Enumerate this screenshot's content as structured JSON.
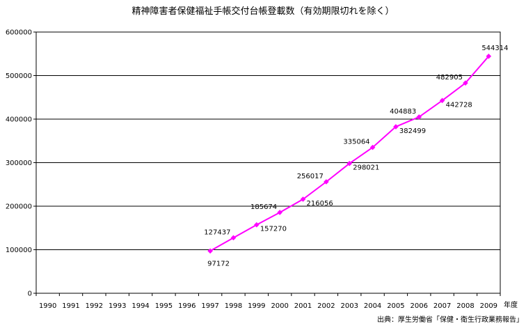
{
  "chart_data": {
    "type": "line",
    "title": "精神障害者保健福祉手帳交付台帳登載数（有効期限切れを除く）",
    "xlabel": "年度",
    "ylabel": "",
    "source": "出典：厚生労働省「保健・衛生行政業務報告」",
    "categories": [
      "1990",
      "1991",
      "1992",
      "1993",
      "1994",
      "1995",
      "1996",
      "1997",
      "1998",
      "1999",
      "2000",
      "2001",
      "2002",
      "2003",
      "2004",
      "2005",
      "2006",
      "2007",
      "2008",
      "2009"
    ],
    "y_ticks": [
      "0",
      "100000",
      "200000",
      "300000",
      "400000",
      "500000",
      "600000"
    ],
    "ylim": [
      0,
      600000
    ],
    "grid": true,
    "series": [
      {
        "values": [
          null,
          null,
          null,
          null,
          null,
          null,
          null,
          97172,
          127437,
          157270,
          185674,
          216056,
          256017,
          298021,
          335064,
          382499,
          404883,
          442728,
          482905,
          544314
        ],
        "labels": [
          null,
          null,
          null,
          null,
          null,
          null,
          null,
          "97172",
          "127437",
          "157270",
          "185674",
          "216056",
          "256017",
          "298021",
          "335064",
          "382499",
          "404883",
          "442728",
          "482905",
          "544314"
        ],
        "color": "#ff00ff"
      }
    ]
  }
}
